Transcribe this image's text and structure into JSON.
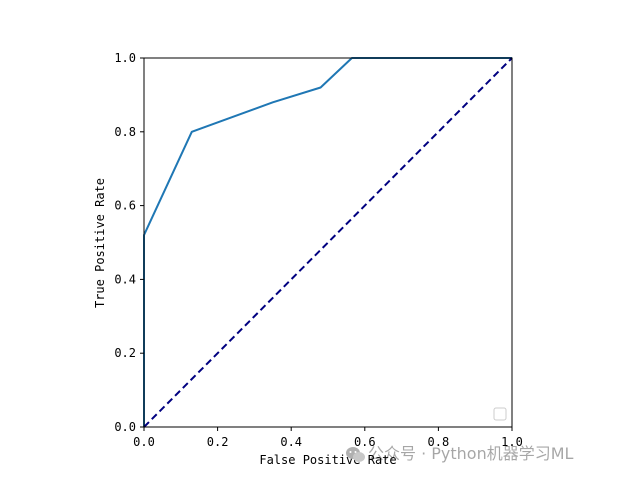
{
  "chart_data": {
    "type": "line",
    "title": "",
    "xlabel": "False Positive Rate",
    "ylabel": "True Positive Rate",
    "xlim": [
      0.0,
      1.0
    ],
    "ylim": [
      0.0,
      1.0
    ],
    "xticks": [
      "0.0",
      "0.2",
      "0.4",
      "0.6",
      "0.8",
      "1.0"
    ],
    "yticks": [
      "0.0",
      "0.2",
      "0.4",
      "0.6",
      "0.8",
      "1.0"
    ],
    "grid": false,
    "legend": {
      "position": "lower right",
      "entries": []
    },
    "series": [
      {
        "style": "solid",
        "color": "#1f77b4",
        "x": [
          0.0,
          0.0,
          0.13,
          0.35,
          0.48,
          0.565,
          1.0
        ],
        "y": [
          0.0,
          0.52,
          0.8,
          0.88,
          0.92,
          1.0,
          1.0
        ]
      },
      {
        "style": "dashed",
        "color": "#000080",
        "x": [
          0.0,
          1.0
        ],
        "y": [
          0.0,
          1.0
        ]
      }
    ]
  },
  "watermark": {
    "text": "公众号 · Python机器学习ML",
    "icon": "wechat-icon"
  }
}
